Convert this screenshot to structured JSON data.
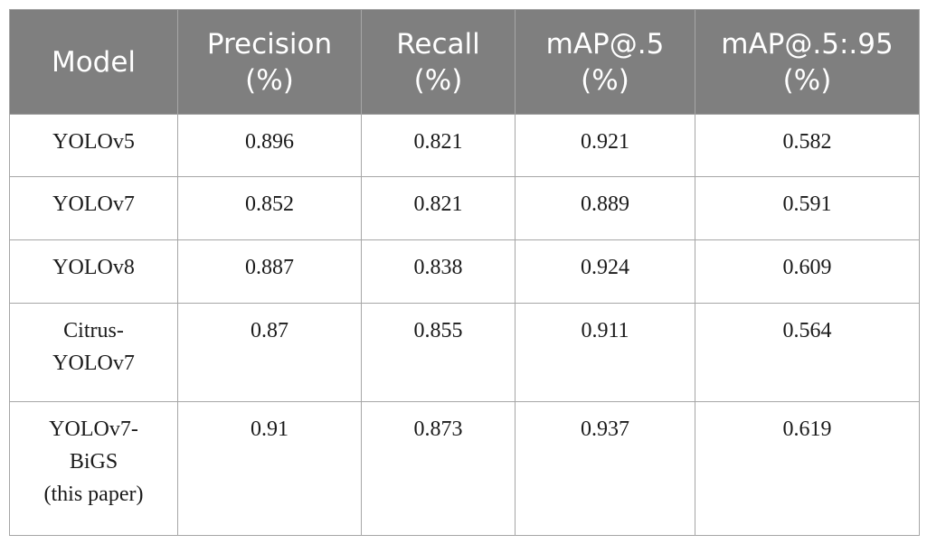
{
  "table": {
    "headers": [
      {
        "lines": [
          "Model"
        ]
      },
      {
        "lines": [
          "Precision",
          "(%)"
        ]
      },
      {
        "lines": [
          "Recall",
          "(%)"
        ]
      },
      {
        "lines": [
          "mAP@.5",
          "(%)"
        ]
      },
      {
        "lines": [
          "mAP@.5:.95",
          "(%)"
        ]
      }
    ],
    "rows": [
      {
        "model": [
          "YOLOv5"
        ],
        "precision": "0.896",
        "recall": "0.821",
        "map50": "0.921",
        "map50_95": "0.582"
      },
      {
        "model": [
          "YOLOv7"
        ],
        "precision": "0.852",
        "recall": "0.821",
        "map50": "0.889",
        "map50_95": "0.591"
      },
      {
        "model": [
          "YOLOv8"
        ],
        "precision": "0.887",
        "recall": "0.838",
        "map50": "0.924",
        "map50_95": "0.609"
      },
      {
        "model": [
          "Citrus-",
          "YOLOv7"
        ],
        "precision": "0.87",
        "recall": "0.855",
        "map50": "0.911",
        "map50_95": "0.564"
      },
      {
        "model": [
          "YOLOv7-",
          "BiGS",
          "(this paper)"
        ],
        "precision": "0.91",
        "recall": "0.873",
        "map50": "0.937",
        "map50_95": "0.619"
      }
    ]
  },
  "colors": {
    "header_background": "#7f7f7f",
    "header_text": "#ffffff",
    "grid": "#a6a6a6",
    "body_text": "#1a1a1a"
  }
}
